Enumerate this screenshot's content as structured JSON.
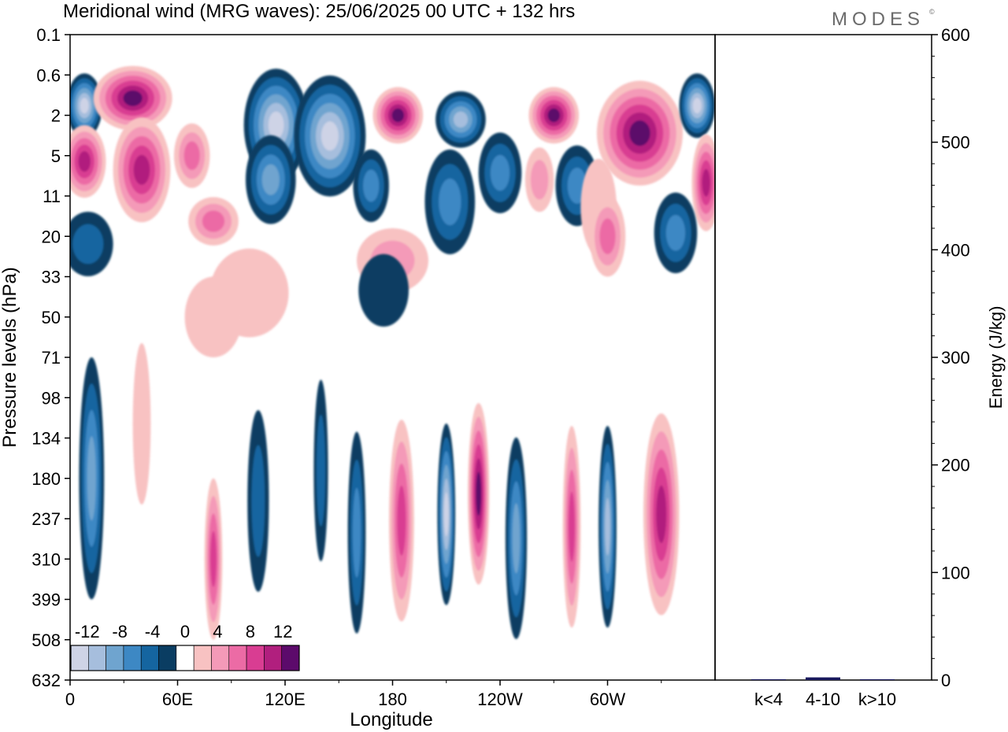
{
  "title": "Meridional wind (MRG waves):  25/06/2025  00 UTC  + 132 hrs",
  "logo_text": "MODES",
  "logo_mark": "©",
  "colors": {
    "neg": [
      "#0a3d62",
      "#1565a0",
      "#3d88c4",
      "#6fa4cf",
      "#a6bedd",
      "#ced3e6"
    ],
    "pos": [
      "#f8c2c2",
      "#f49ab8",
      "#ec6ba5",
      "#d93d92",
      "#b11f7e",
      "#5c0a6b"
    ],
    "axis": "#000000",
    "bar": "#1a1a5e"
  },
  "chart_data": [
    {
      "type": "heatmap",
      "subtype": "filled-contour",
      "xlabel": "Longitude",
      "ylabel": "Pressure levels (hPa)",
      "xticks": [
        "0",
        "60E",
        "120E",
        "180",
        "120W",
        "60W"
      ],
      "xtick_degrees": [
        0,
        60,
        120,
        180,
        240,
        300
      ],
      "xlim": [
        0,
        360
      ],
      "yticks": [
        "0.1",
        "0.6",
        "2",
        "5",
        "11",
        "20",
        "33",
        "50",
        "71",
        "98",
        "134",
        "180",
        "237",
        "310",
        "399",
        "508",
        "632"
      ],
      "colorbar": {
        "levels": [
          -14,
          -12,
          -10,
          -8,
          -6,
          -4,
          -2,
          2,
          4,
          6,
          8,
          10,
          12,
          14
        ],
        "labels": [
          "-12",
          "-8",
          "-4",
          "0",
          "4",
          "8",
          "12"
        ],
        "label_values": [
          -12,
          -8,
          -4,
          0,
          4,
          8,
          12
        ]
      },
      "features": [
        {
          "lon": 8,
          "lev": 1.5,
          "w": 10,
          "h": 1.6,
          "v": -14
        },
        {
          "lon": 35,
          "lev": 1.2,
          "w": 22,
          "h": 1.6,
          "v": 14
        },
        {
          "lon": 8,
          "lev": 5.6,
          "w": 12,
          "h": 1.8,
          "v": 12
        },
        {
          "lon": 40,
          "lev": 6.6,
          "w": 16,
          "h": 2.6,
          "v": 12
        },
        {
          "lon": 68,
          "lev": 5.0,
          "w": 10,
          "h": 1.6,
          "v": 6
        },
        {
          "lon": 115,
          "lev": 2.5,
          "w": 18,
          "h": 2.8,
          "v": -14
        },
        {
          "lon": 145,
          "lev": 3.2,
          "w": 20,
          "h": 3.0,
          "v": -14
        },
        {
          "lon": 112,
          "lev": 8.0,
          "w": 14,
          "h": 2.2,
          "v": -8
        },
        {
          "lon": 168,
          "lev": 9.0,
          "w": 10,
          "h": 1.8,
          "v": -6
        },
        {
          "lon": 80,
          "lev": 16.0,
          "w": 14,
          "h": 1.2,
          "v": 6
        },
        {
          "lon": 183,
          "lev": 2.0,
          "w": 14,
          "h": 1.4,
          "v": 14
        },
        {
          "lon": 218,
          "lev": 2.2,
          "w": 14,
          "h": 1.4,
          "v": -10
        },
        {
          "lon": 270,
          "lev": 2.0,
          "w": 14,
          "h": 1.4,
          "v": 14
        },
        {
          "lon": 318,
          "lev": 3.0,
          "w": 24,
          "h": 2.6,
          "v": 14
        },
        {
          "lon": 350,
          "lev": 1.5,
          "w": 10,
          "h": 1.6,
          "v": -14
        },
        {
          "lon": 355,
          "lev": 8.5,
          "w": 8,
          "h": 2.4,
          "v": 12
        },
        {
          "lon": 240,
          "lev": 7.0,
          "w": 12,
          "h": 2.0,
          "v": -6
        },
        {
          "lon": 212,
          "lev": 12.0,
          "w": 14,
          "h": 2.6,
          "v": -6
        },
        {
          "lon": 262,
          "lev": 8.0,
          "w": 8,
          "h": 1.6,
          "v": 4
        },
        {
          "lon": 283,
          "lev": 9.0,
          "w": 12,
          "h": 2.0,
          "v": -6
        },
        {
          "lon": 295,
          "lev": 13.0,
          "w": 10,
          "h": 2.4,
          "v": 2
        },
        {
          "lon": 300,
          "lev": 20.0,
          "w": 10,
          "h": 2.0,
          "v": 6
        },
        {
          "lon": 338,
          "lev": 19.0,
          "w": 12,
          "h": 2.0,
          "v": -6
        },
        {
          "lon": 10,
          "lev": 22.0,
          "w": 14,
          "h": 1.6,
          "v": -4
        },
        {
          "lon": 180,
          "lev": 27.0,
          "w": 20,
          "h": 1.6,
          "v": 4
        },
        {
          "lon": 100,
          "lev": 39.0,
          "w": 22,
          "h": 2.2,
          "v": 2
        },
        {
          "lon": 175,
          "lev": 38.0,
          "w": 14,
          "h": 1.8,
          "v": -2
        },
        {
          "lon": 80,
          "lev": 50.0,
          "w": 16,
          "h": 2.0,
          "v": 2
        },
        {
          "lon": 12,
          "lev": 180.0,
          "w": 7,
          "h": 6.0,
          "v": -8
        },
        {
          "lon": 40,
          "lev": 120.0,
          "w": 5,
          "h": 4.0,
          "v": 2
        },
        {
          "lon": 80,
          "lev": 310.0,
          "w": 5,
          "h": 4.0,
          "v": 8
        },
        {
          "lon": 105,
          "lev": 210.0,
          "w": 6,
          "h": 4.5,
          "v": -4
        },
        {
          "lon": 140,
          "lev": 170.0,
          "w": 4,
          "h": 4.5,
          "v": -4
        },
        {
          "lon": 160,
          "lev": 260.0,
          "w": 5,
          "h": 5.0,
          "v": -6
        },
        {
          "lon": 185,
          "lev": 240.0,
          "w": 7,
          "h": 5.0,
          "v": 8
        },
        {
          "lon": 210,
          "lev": 230.0,
          "w": 5,
          "h": 4.5,
          "v": -14
        },
        {
          "lon": 228,
          "lev": 200.0,
          "w": 6,
          "h": 4.5,
          "v": 14
        },
        {
          "lon": 249,
          "lev": 270.0,
          "w": 6,
          "h": 5.0,
          "v": -8
        },
        {
          "lon": 280,
          "lev": 250.0,
          "w": 5,
          "h": 5.0,
          "v": 8
        },
        {
          "lon": 300,
          "lev": 250.0,
          "w": 5,
          "h": 5.0,
          "v": -10
        },
        {
          "lon": 330,
          "lev": 230.0,
          "w": 10,
          "h": 5.0,
          "v": 10
        }
      ],
      "coverage_bands": [
        {
          "lev_from": 0.1,
          "lev_to": 4.0,
          "fill": "dense"
        },
        {
          "lev_from": 4.0,
          "lev_to": 12.0,
          "fill": "medium"
        },
        {
          "lev_from": 12.0,
          "lev_to": 50.0,
          "fill": "sparse"
        },
        {
          "lev_from": 50.0,
          "lev_to": 632.0,
          "fill": "vertical-columns"
        }
      ]
    },
    {
      "type": "bar",
      "categories": [
        "k<4",
        "4-10",
        "k>10"
      ],
      "values": [
        0.6,
        2.5,
        0.3
      ],
      "ylabel": "Energy (J/kg)",
      "ylim": [
        0,
        600
      ],
      "yticks": [
        0,
        100,
        200,
        300,
        400,
        500,
        600
      ]
    }
  ]
}
